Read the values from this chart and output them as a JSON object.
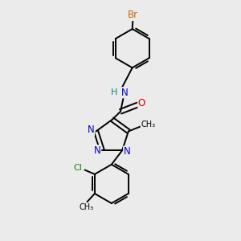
{
  "bg_color": "#ebebeb",
  "bond_color": "#000000",
  "bond_width": 1.4,
  "atom_colors": {
    "Br": "#cc6600",
    "N": "#0000cc",
    "O": "#cc0000",
    "Cl": "#008800",
    "C": "#000000",
    "H": "#008888"
  },
  "font_size": 8.5,
  "fig_size": [
    3.0,
    3.0
  ],
  "dpi": 100
}
